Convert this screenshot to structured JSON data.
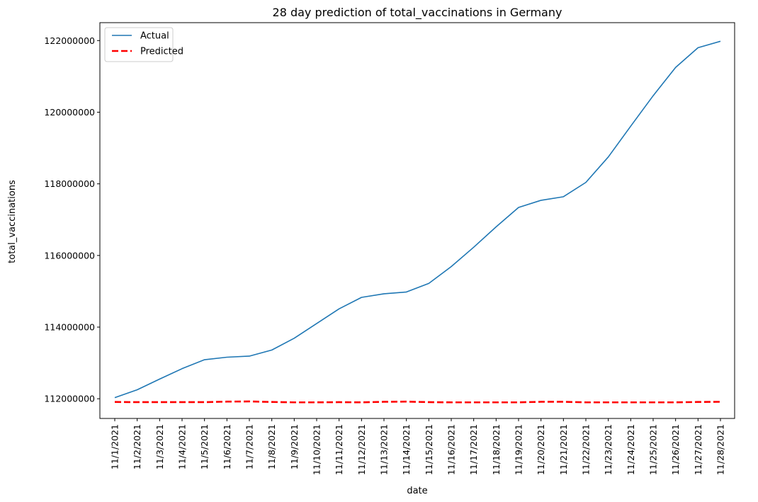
{
  "chart_data": {
    "type": "line",
    "title": "28 day prediction of total_vaccinations in Germany",
    "xlabel": "date",
    "ylabel": "total_vaccinations",
    "ylim": [
      111450000,
      122500000
    ],
    "yticks": [
      112000000,
      114000000,
      116000000,
      118000000,
      120000000,
      122000000
    ],
    "ytick_labels": [
      "112000000",
      "114000000",
      "116000000",
      "118000000",
      "120000000",
      "122000000"
    ],
    "categories": [
      "11/1/2021",
      "11/2/2021",
      "11/3/2021",
      "11/4/2021",
      "11/5/2021",
      "11/6/2021",
      "11/7/2021",
      "11/8/2021",
      "11/9/2021",
      "11/10/2021",
      "11/11/2021",
      "11/12/2021",
      "11/13/2021",
      "11/14/2021",
      "11/15/2021",
      "11/16/2021",
      "11/17/2021",
      "11/18/2021",
      "11/19/2021",
      "11/20/2021",
      "11/21/2021",
      "11/22/2021",
      "11/23/2021",
      "11/24/2021",
      "11/25/2021",
      "11/26/2021",
      "11/27/2021",
      "11/28/2021"
    ],
    "legend_position": "top-left",
    "grid": false,
    "series": [
      {
        "name": "Actual",
        "color": "#1f77b4",
        "style": "solid",
        "values": [
          112030000,
          112250000,
          112550000,
          112840000,
          113090000,
          113160000,
          113190000,
          113360000,
          113690000,
          114100000,
          114510000,
          114830000,
          114930000,
          114980000,
          115220000,
          115690000,
          116230000,
          116800000,
          117340000,
          117540000,
          117640000,
          118040000,
          118750000,
          119610000,
          120460000,
          121250000,
          121800000,
          121980000
        ]
      },
      {
        "name": "Predicted",
        "color": "#ff0000",
        "style": "dashed",
        "values": [
          111910000,
          111905000,
          111905000,
          111905000,
          111905000,
          111920000,
          111925000,
          111910000,
          111900000,
          111900000,
          111905000,
          111900000,
          111915000,
          111920000,
          111905000,
          111900000,
          111900000,
          111900000,
          111900000,
          111915000,
          111915000,
          111900000,
          111900000,
          111900000,
          111900000,
          111900000,
          111910000,
          111915000
        ]
      }
    ]
  }
}
